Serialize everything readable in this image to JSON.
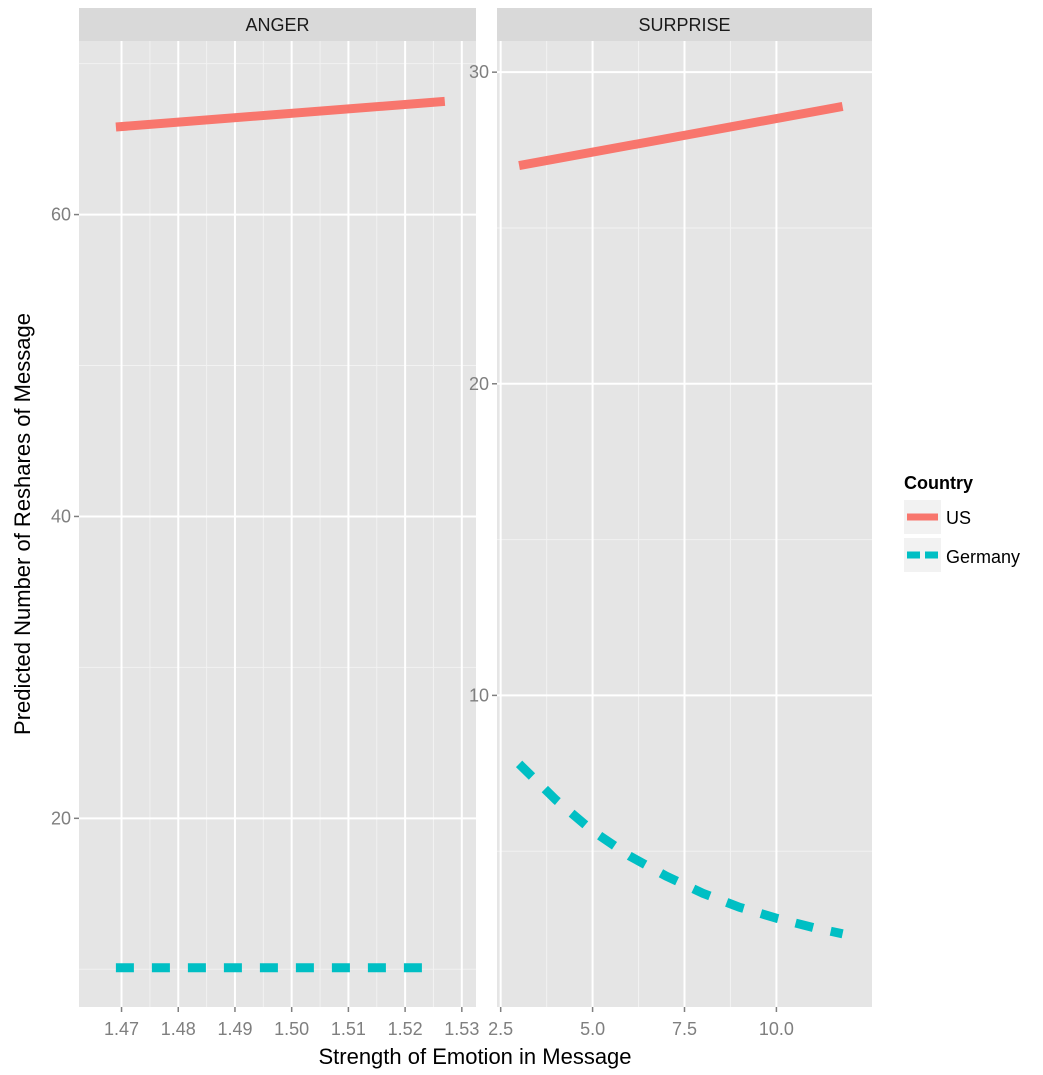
{
  "chart_data": {
    "type": "line",
    "xlabel": "Strength of Emotion in Message",
    "ylabel": "Predicted Number of Reshares of Message",
    "legend": {
      "title": "Country",
      "position": "right",
      "entries": [
        {
          "name": "US",
          "color": "#F8766D",
          "linetype": "solid"
        },
        {
          "name": "Germany",
          "color": "#00BFC4",
          "linetype": "dashed"
        }
      ]
    },
    "panels": [
      {
        "strip": "ANGER",
        "xlim": [
          1.4625,
          1.5325
        ],
        "ylim": [
          7.5,
          71.5
        ],
        "xticks": [
          1.47,
          1.48,
          1.49,
          1.5,
          1.51,
          1.52,
          1.53
        ],
        "xtick_labels": [
          "1.47",
          "1.48",
          "1.49",
          "1.50",
          "1.51",
          "1.52",
          "1.53"
        ],
        "yticks": [
          20,
          40,
          60
        ],
        "ytick_labels": [
          "20",
          "40",
          "60"
        ],
        "series": [
          {
            "name": "US",
            "x": [
              1.469,
              1.527
            ],
            "y": [
              65.8,
              67.5
            ]
          },
          {
            "name": "Germany",
            "x": [
              1.469,
              1.524
            ],
            "y": [
              10.1,
              10.1
            ]
          }
        ]
      },
      {
        "strip": "SURPRISE",
        "xlim": [
          2.4,
          12.6
        ],
        "ylim": [
          0.0,
          31.0
        ],
        "xticks": [
          2.5,
          5.0,
          7.5,
          10.0
        ],
        "xtick_labels": [
          "2.5",
          "5.0",
          "7.5",
          "10.0"
        ],
        "yticks": [
          10,
          20,
          30
        ],
        "ytick_labels": [
          "10",
          "20",
          "30"
        ],
        "series": [
          {
            "name": "US",
            "x": [
              3.0,
              11.8
            ],
            "y": [
              27.0,
              28.9
            ]
          },
          {
            "name": "Germany",
            "x": [
              3.0,
              4.0,
              5.0,
              6.0,
              7.0,
              8.0,
              9.0,
              10.0,
              11.0,
              11.8
            ],
            "y": [
              7.8,
              6.65,
              5.65,
              4.85,
              4.2,
              3.65,
              3.2,
              2.85,
              2.55,
              2.35
            ]
          }
        ]
      }
    ]
  }
}
